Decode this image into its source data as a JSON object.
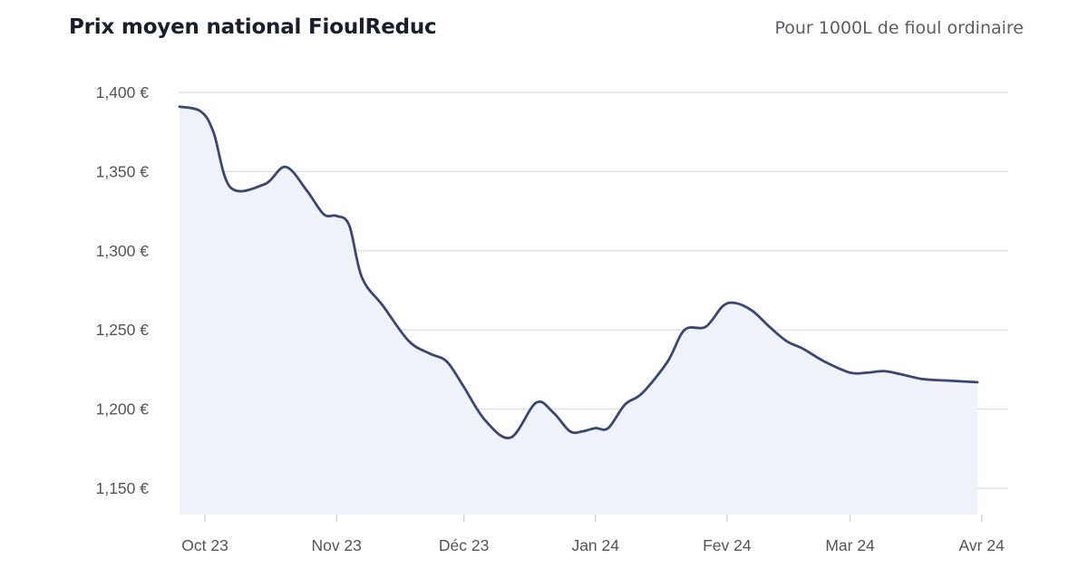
{
  "header": {
    "title": "Prix moyen national FioulReduc",
    "subtitle": "Pour 1000L de fioul ordinaire"
  },
  "chart_data": {
    "type": "area",
    "title": "Prix moyen national FioulReduc",
    "subtitle": "Pour 1000L de fioul ordinaire",
    "xlabel": "",
    "ylabel": "",
    "y_unit": "€",
    "ylim": [
      1130,
      1400
    ],
    "xlim": [
      "2023-09-25",
      "2024-03-31"
    ],
    "grid": true,
    "legend": "none",
    "colors": {
      "line": "#3b4672",
      "fill": "#f0f2fa",
      "grid": "#dfe1e6"
    },
    "y_ticks": [
      {
        "value": 1400,
        "label": "1,400 €"
      },
      {
        "value": 1350,
        "label": "1,350 €"
      },
      {
        "value": 1300,
        "label": "1,300 €"
      },
      {
        "value": 1250,
        "label": "1,250 €"
      },
      {
        "value": 1200,
        "label": "1,200 €"
      },
      {
        "value": 1150,
        "label": "1,150 €"
      }
    ],
    "x_ticks": [
      {
        "date": "2023-10-01",
        "label": "Oct 23"
      },
      {
        "date": "2023-11-01",
        "label": "Nov 23"
      },
      {
        "date": "2023-12-01",
        "label": "Déc 23"
      },
      {
        "date": "2024-01-01",
        "label": "Jan 24"
      },
      {
        "date": "2024-02-01",
        "label": "Fev 24"
      },
      {
        "date": "2024-03-01",
        "label": "Mar 24"
      },
      {
        "date": "2024-04-01",
        "label": "Avr 24"
      }
    ],
    "series": [
      {
        "x": [
          "2023-09-25",
          "2023-09-30",
          "2023-10-03",
          "2023-10-07",
          "2023-10-15",
          "2023-10-20",
          "2023-10-25",
          "2023-10-29",
          "2023-11-01",
          "2023-11-04",
          "2023-11-07",
          "2023-11-12",
          "2023-11-18",
          "2023-11-23",
          "2023-11-27",
          "2023-12-01",
          "2023-12-06",
          "2023-12-12",
          "2023-12-18",
          "2023-12-22",
          "2023-12-26",
          "2023-12-29",
          "2024-01-01",
          "2024-01-04",
          "2024-01-08",
          "2024-01-12",
          "2024-01-18",
          "2024-01-22",
          "2024-01-27",
          "2024-01-31",
          "2024-02-03",
          "2024-02-07",
          "2024-02-11",
          "2024-02-15",
          "2024-02-19",
          "2024-02-24",
          "2024-03-01",
          "2024-03-05",
          "2024-03-09",
          "2024-03-13",
          "2024-03-18",
          "2024-03-24",
          "2024-03-31"
        ],
        "y": [
          1391,
          1388,
          1375,
          1340,
          1342,
          1353,
          1338,
          1323,
          1322,
          1316,
          1283,
          1265,
          1243,
          1235,
          1230,
          1214,
          1193,
          1182,
          1204,
          1198,
          1186,
          1186,
          1188,
          1188,
          1203,
          1210,
          1230,
          1250,
          1252,
          1265,
          1267,
          1262,
          1252,
          1243,
          1238,
          1230,
          1223,
          1223,
          1224,
          1222,
          1219,
          1218,
          1217
        ]
      }
    ]
  }
}
